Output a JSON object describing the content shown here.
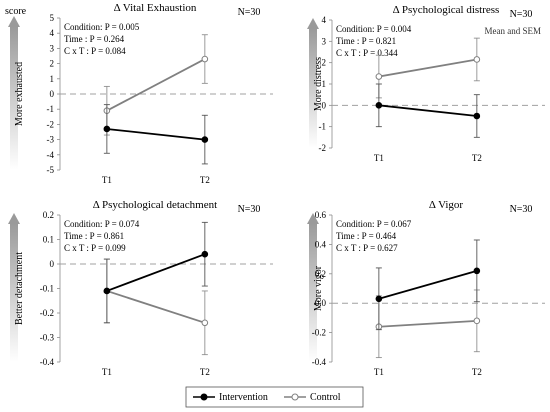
{
  "figure": {
    "score_label": "score",
    "legend": [
      {
        "label": "Intervention",
        "color": "#000000",
        "marker": "filled-circle"
      },
      {
        "label": "Control",
        "color": "#808080",
        "marker": "open-circle"
      }
    ]
  },
  "chart_data": [
    {
      "type": "line",
      "title": "Δ Vital Exhaustion",
      "n_label": "N=30",
      "ylabel": "More exhausted",
      "stats": [
        "Condition: P = 0.005",
        "Time : P = 0.264",
        "C x T : P = 0.084"
      ],
      "note": "",
      "categories": [
        "T1",
        "T2"
      ],
      "ylim": [
        -5,
        5
      ],
      "yticks": [
        -5,
        -4,
        -3,
        -2,
        -1,
        0,
        1,
        2,
        3,
        4,
        5
      ],
      "series": [
        {
          "name": "Intervention",
          "values": [
            -2.3,
            -3.0
          ],
          "err": [
            1.6,
            1.6
          ]
        },
        {
          "name": "Control",
          "values": [
            -1.1,
            2.3
          ],
          "err": [
            1.6,
            1.6
          ]
        }
      ]
    },
    {
      "type": "line",
      "title": "Δ Psychological distress",
      "n_label": "N=30",
      "ylabel": "More distress",
      "stats": [
        "Condition: P = 0.004",
        "Time : P = 0.821",
        "C x T : P = 0.344"
      ],
      "note": "Mean and SEM",
      "categories": [
        "T1",
        "T2"
      ],
      "ylim": [
        -2,
        4
      ],
      "yticks": [
        -2,
        -1,
        0,
        1,
        2,
        3,
        4
      ],
      "series": [
        {
          "name": "Intervention",
          "values": [
            0.0,
            -0.5
          ],
          "err": [
            1.0,
            1.0
          ]
        },
        {
          "name": "Control",
          "values": [
            1.35,
            2.15
          ],
          "err": [
            1.0,
            1.0
          ]
        }
      ]
    },
    {
      "type": "line",
      "title": "Δ Psychological detachment",
      "n_label": "N=30",
      "ylabel": "Better detachment",
      "stats": [
        "Condition: P = 0.074",
        "Time : P = 0.861",
        "C x T : P = 0.099"
      ],
      "note": "",
      "categories": [
        "T1",
        "T2"
      ],
      "ylim": [
        -0.4,
        0.2
      ],
      "yticks": [
        -0.4,
        -0.3,
        -0.2,
        -0.1,
        0,
        0.1,
        0.2
      ],
      "series": [
        {
          "name": "Intervention",
          "values": [
            -0.11,
            0.04
          ],
          "err": [
            0.13,
            0.13
          ]
        },
        {
          "name": "Control",
          "values": [
            -0.11,
            -0.24
          ],
          "err": [
            0.13,
            0.13
          ]
        }
      ]
    },
    {
      "type": "line",
      "title": "Δ Vigor",
      "n_label": "N=30",
      "ylabel": "More vigor",
      "stats": [
        "Condition: P = 0.067",
        "Time : P = 0.464",
        "C x T : P = 0.627"
      ],
      "note": "",
      "categories": [
        "T1",
        "T2"
      ],
      "ylim": [
        -0.4,
        0.6
      ],
      "yticks": [
        -0.4,
        -0.2,
        0,
        0.2,
        0.4,
        0.6
      ],
      "series": [
        {
          "name": "Intervention",
          "values": [
            0.03,
            0.22
          ],
          "err": [
            0.21,
            0.21
          ]
        },
        {
          "name": "Control",
          "values": [
            -0.16,
            -0.12
          ],
          "err": [
            0.21,
            0.21
          ]
        }
      ]
    }
  ]
}
